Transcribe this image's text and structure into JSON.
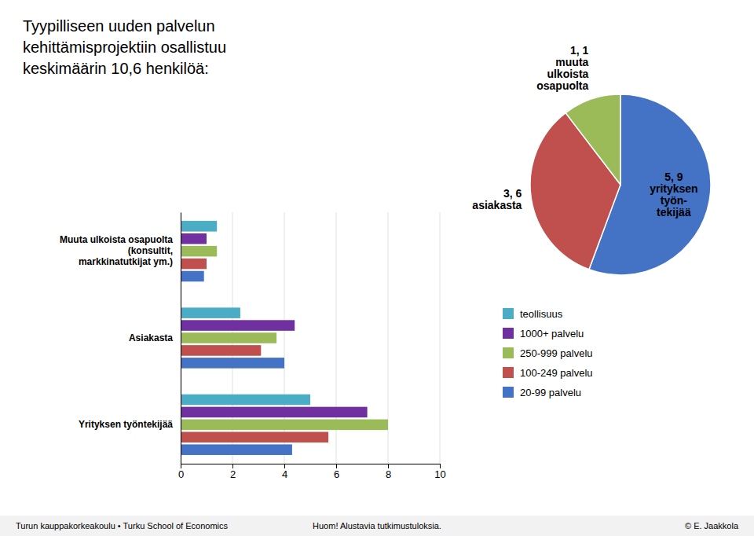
{
  "chart_data": [
    {
      "type": "bar",
      "orientation": "horizontal",
      "title": "Tyypilliseen uuden palvelun\nkehittämisprojektiin osallistuu\nkeskimäärin 10,6 henkilöä:",
      "categories": [
        "Muuta ulkoista osapuolta\n(konsultit,\nmarkkinatutkijat ym.)",
        "Asiakasta",
        "Yrityksen työntekijää"
      ],
      "series": [
        {
          "name": "teollisuus",
          "color": "#4BACC6",
          "values": [
            1.4,
            2.3,
            5.0
          ]
        },
        {
          "name": "1000+ palvelu",
          "color": "#7030A0",
          "values": [
            1.0,
            4.4,
            7.2
          ]
        },
        {
          "name": "250-999 palvelu",
          "color": "#9BBB59",
          "values": [
            1.4,
            3.7,
            8.0
          ]
        },
        {
          "name": "100-249 palvelu",
          "color": "#C0504D",
          "values": [
            1.0,
            3.1,
            5.7
          ]
        },
        {
          "name": "20-99 palvelu",
          "color": "#4472C4",
          "values": [
            0.9,
            4.0,
            4.3
          ]
        }
      ],
      "xlim": [
        0,
        10
      ],
      "xticks": [
        0,
        2,
        4,
        6,
        8,
        10
      ],
      "grid": true,
      "legend": "right",
      "annotations": [
        "Turun kauppakorkeakoulu • Turku School of Economics",
        "Huom! Alustavia tutkimustuloksia.",
        "© E. Jaakkola"
      ]
    },
    {
      "type": "pie",
      "values": [
        5.9,
        3.6,
        1.1
      ],
      "value_labels": [
        "5, 9\nyrityksen\ntyön-\ntekijää",
        "3, 6\nasiakasta",
        "1, 1\nmuuta\nulkoista\nosapuolta"
      ],
      "colors": [
        "#4472C4",
        "#C0504D",
        "#9BBB59"
      ],
      "data_labels": true
    }
  ]
}
